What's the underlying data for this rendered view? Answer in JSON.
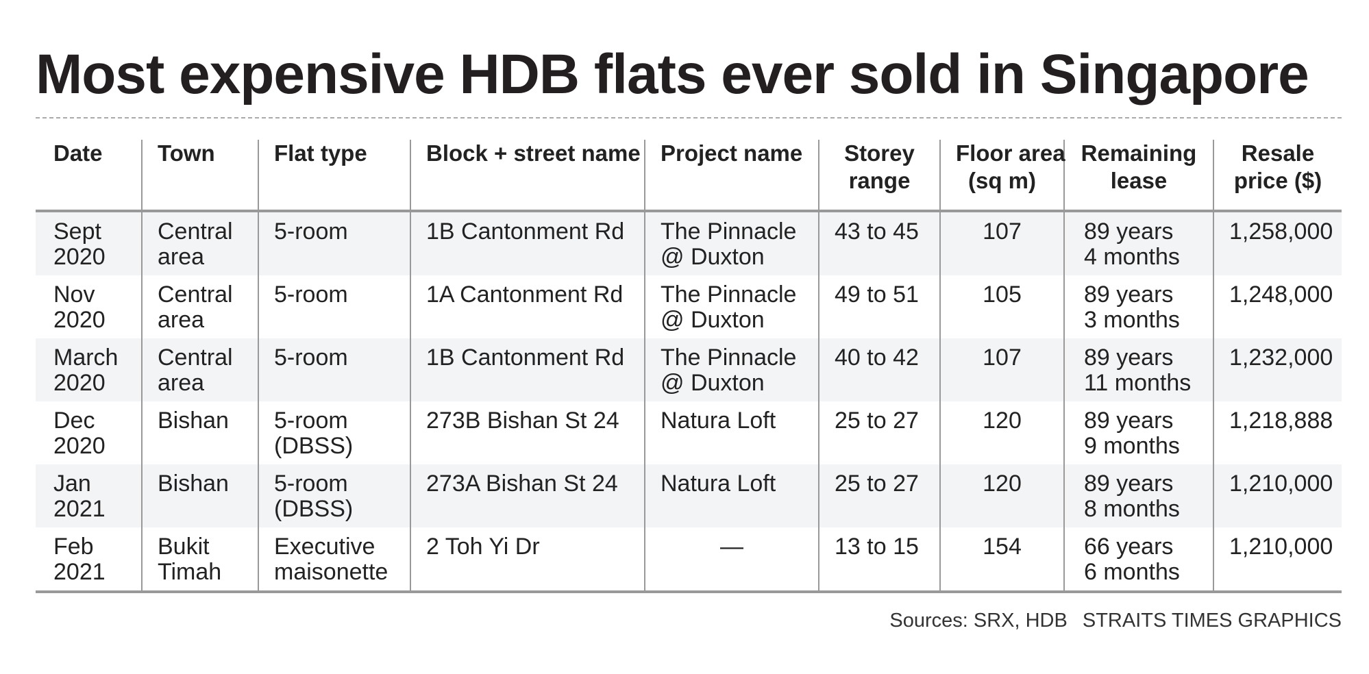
{
  "header": {
    "title": "Most expensive HDB flats ever sold in Singapore"
  },
  "table": {
    "columns": [
      [
        "Date"
      ],
      [
        "Town"
      ],
      [
        "Flat type"
      ],
      [
        "Block + street name"
      ],
      [
        "Project name"
      ],
      [
        "Storey",
        "range"
      ],
      [
        "Floor area",
        "(sq m)"
      ],
      [
        "Remaining",
        "lease"
      ],
      [
        "Resale",
        "price ($)"
      ]
    ],
    "rows": [
      [
        [
          "Sept",
          "2020"
        ],
        [
          "Central",
          "area"
        ],
        [
          "5-room"
        ],
        [
          "1B Cantonment Rd"
        ],
        [
          "The Pinnacle",
          "@ Duxton"
        ],
        [
          "43 to 45"
        ],
        [
          "107"
        ],
        [
          "89 years",
          "4 months"
        ],
        [
          "1,258,000"
        ]
      ],
      [
        [
          "Nov",
          "2020"
        ],
        [
          "Central",
          "area"
        ],
        [
          "5-room"
        ],
        [
          "1A Cantonment Rd"
        ],
        [
          "The Pinnacle",
          "@ Duxton"
        ],
        [
          "49 to 51"
        ],
        [
          "105"
        ],
        [
          "89 years",
          "3 months"
        ],
        [
          "1,248,000"
        ]
      ],
      [
        [
          "March",
          "2020"
        ],
        [
          "Central",
          "area"
        ],
        [
          "5-room"
        ],
        [
          "1B Cantonment Rd"
        ],
        [
          "The Pinnacle",
          "@ Duxton"
        ],
        [
          "40 to 42"
        ],
        [
          "107"
        ],
        [
          "89 years",
          "11 months"
        ],
        [
          "1,232,000"
        ]
      ],
      [
        [
          "Dec",
          "2020"
        ],
        [
          "Bishan"
        ],
        [
          "5-room",
          "(DBSS)"
        ],
        [
          "273B Bishan St 24"
        ],
        [
          "Natura Loft"
        ],
        [
          "25 to 27"
        ],
        [
          "120"
        ],
        [
          "89 years",
          "9 months"
        ],
        [
          "1,218,888"
        ]
      ],
      [
        [
          "Jan",
          "2021"
        ],
        [
          "Bishan"
        ],
        [
          "5-room",
          "(DBSS)"
        ],
        [
          "273A Bishan St 24"
        ],
        [
          "Natura Loft"
        ],
        [
          "25 to 27"
        ],
        [
          "120"
        ],
        [
          "89 years",
          "8 months"
        ],
        [
          "1,210,000"
        ]
      ],
      [
        [
          "Feb",
          "2021"
        ],
        [
          "Bukit",
          "Timah"
        ],
        [
          "Executive",
          "maisonette"
        ],
        [
          "2 Toh Yi Dr"
        ],
        [
          "—"
        ],
        [
          "13 to 15"
        ],
        [
          "154"
        ],
        [
          "66 years",
          "6 months"
        ],
        [
          "1,210,000"
        ]
      ]
    ]
  },
  "footer": {
    "sources": "Sources: SRX, HDB",
    "credit": "STRAITS TIMES GRAPHICS"
  }
}
